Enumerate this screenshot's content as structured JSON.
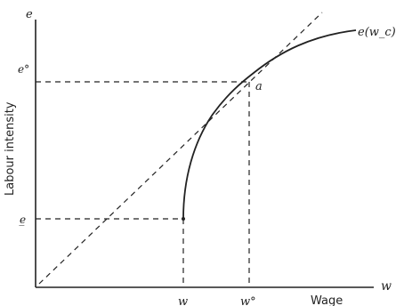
{
  "diagram": {
    "y_axis_symbol": "e",
    "x_axis_symbol": "w",
    "y_axis_label": "Labour intensity",
    "x_axis_label": "Wage",
    "curve_label": "e(w_c)",
    "point_label": "a",
    "e_star_label": "e°",
    "e_min_label": "e̲",
    "w_label": "w",
    "w_star_label": "w°"
  },
  "colors": {
    "ink": "#222222",
    "background": "#ffffff"
  }
}
